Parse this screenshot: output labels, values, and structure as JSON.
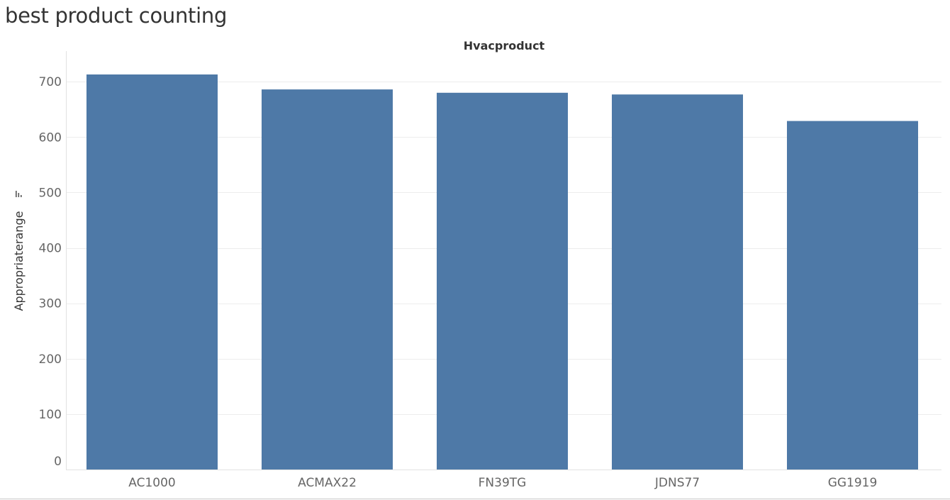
{
  "page": {
    "title": "best product counting"
  },
  "chart_data": {
    "type": "bar",
    "header": "Hvacproduct",
    "ylabel": "Appropriaterange",
    "ylabel_sort_icon": "sort-descending-icon",
    "categories": [
      "AC1000",
      "ACMAX22",
      "FN39TG",
      "JDNS77",
      "GG1919"
    ],
    "values": [
      713,
      686,
      680,
      677,
      629
    ],
    "yticks": [
      0,
      100,
      200,
      300,
      400,
      500,
      600,
      700
    ],
    "ylim": [
      0,
      722
    ],
    "grid": true,
    "legend": "none",
    "bar_color": "#4e79a7",
    "text_color": "#666666",
    "header_color": "#333333",
    "grid_color": "#ededed"
  }
}
